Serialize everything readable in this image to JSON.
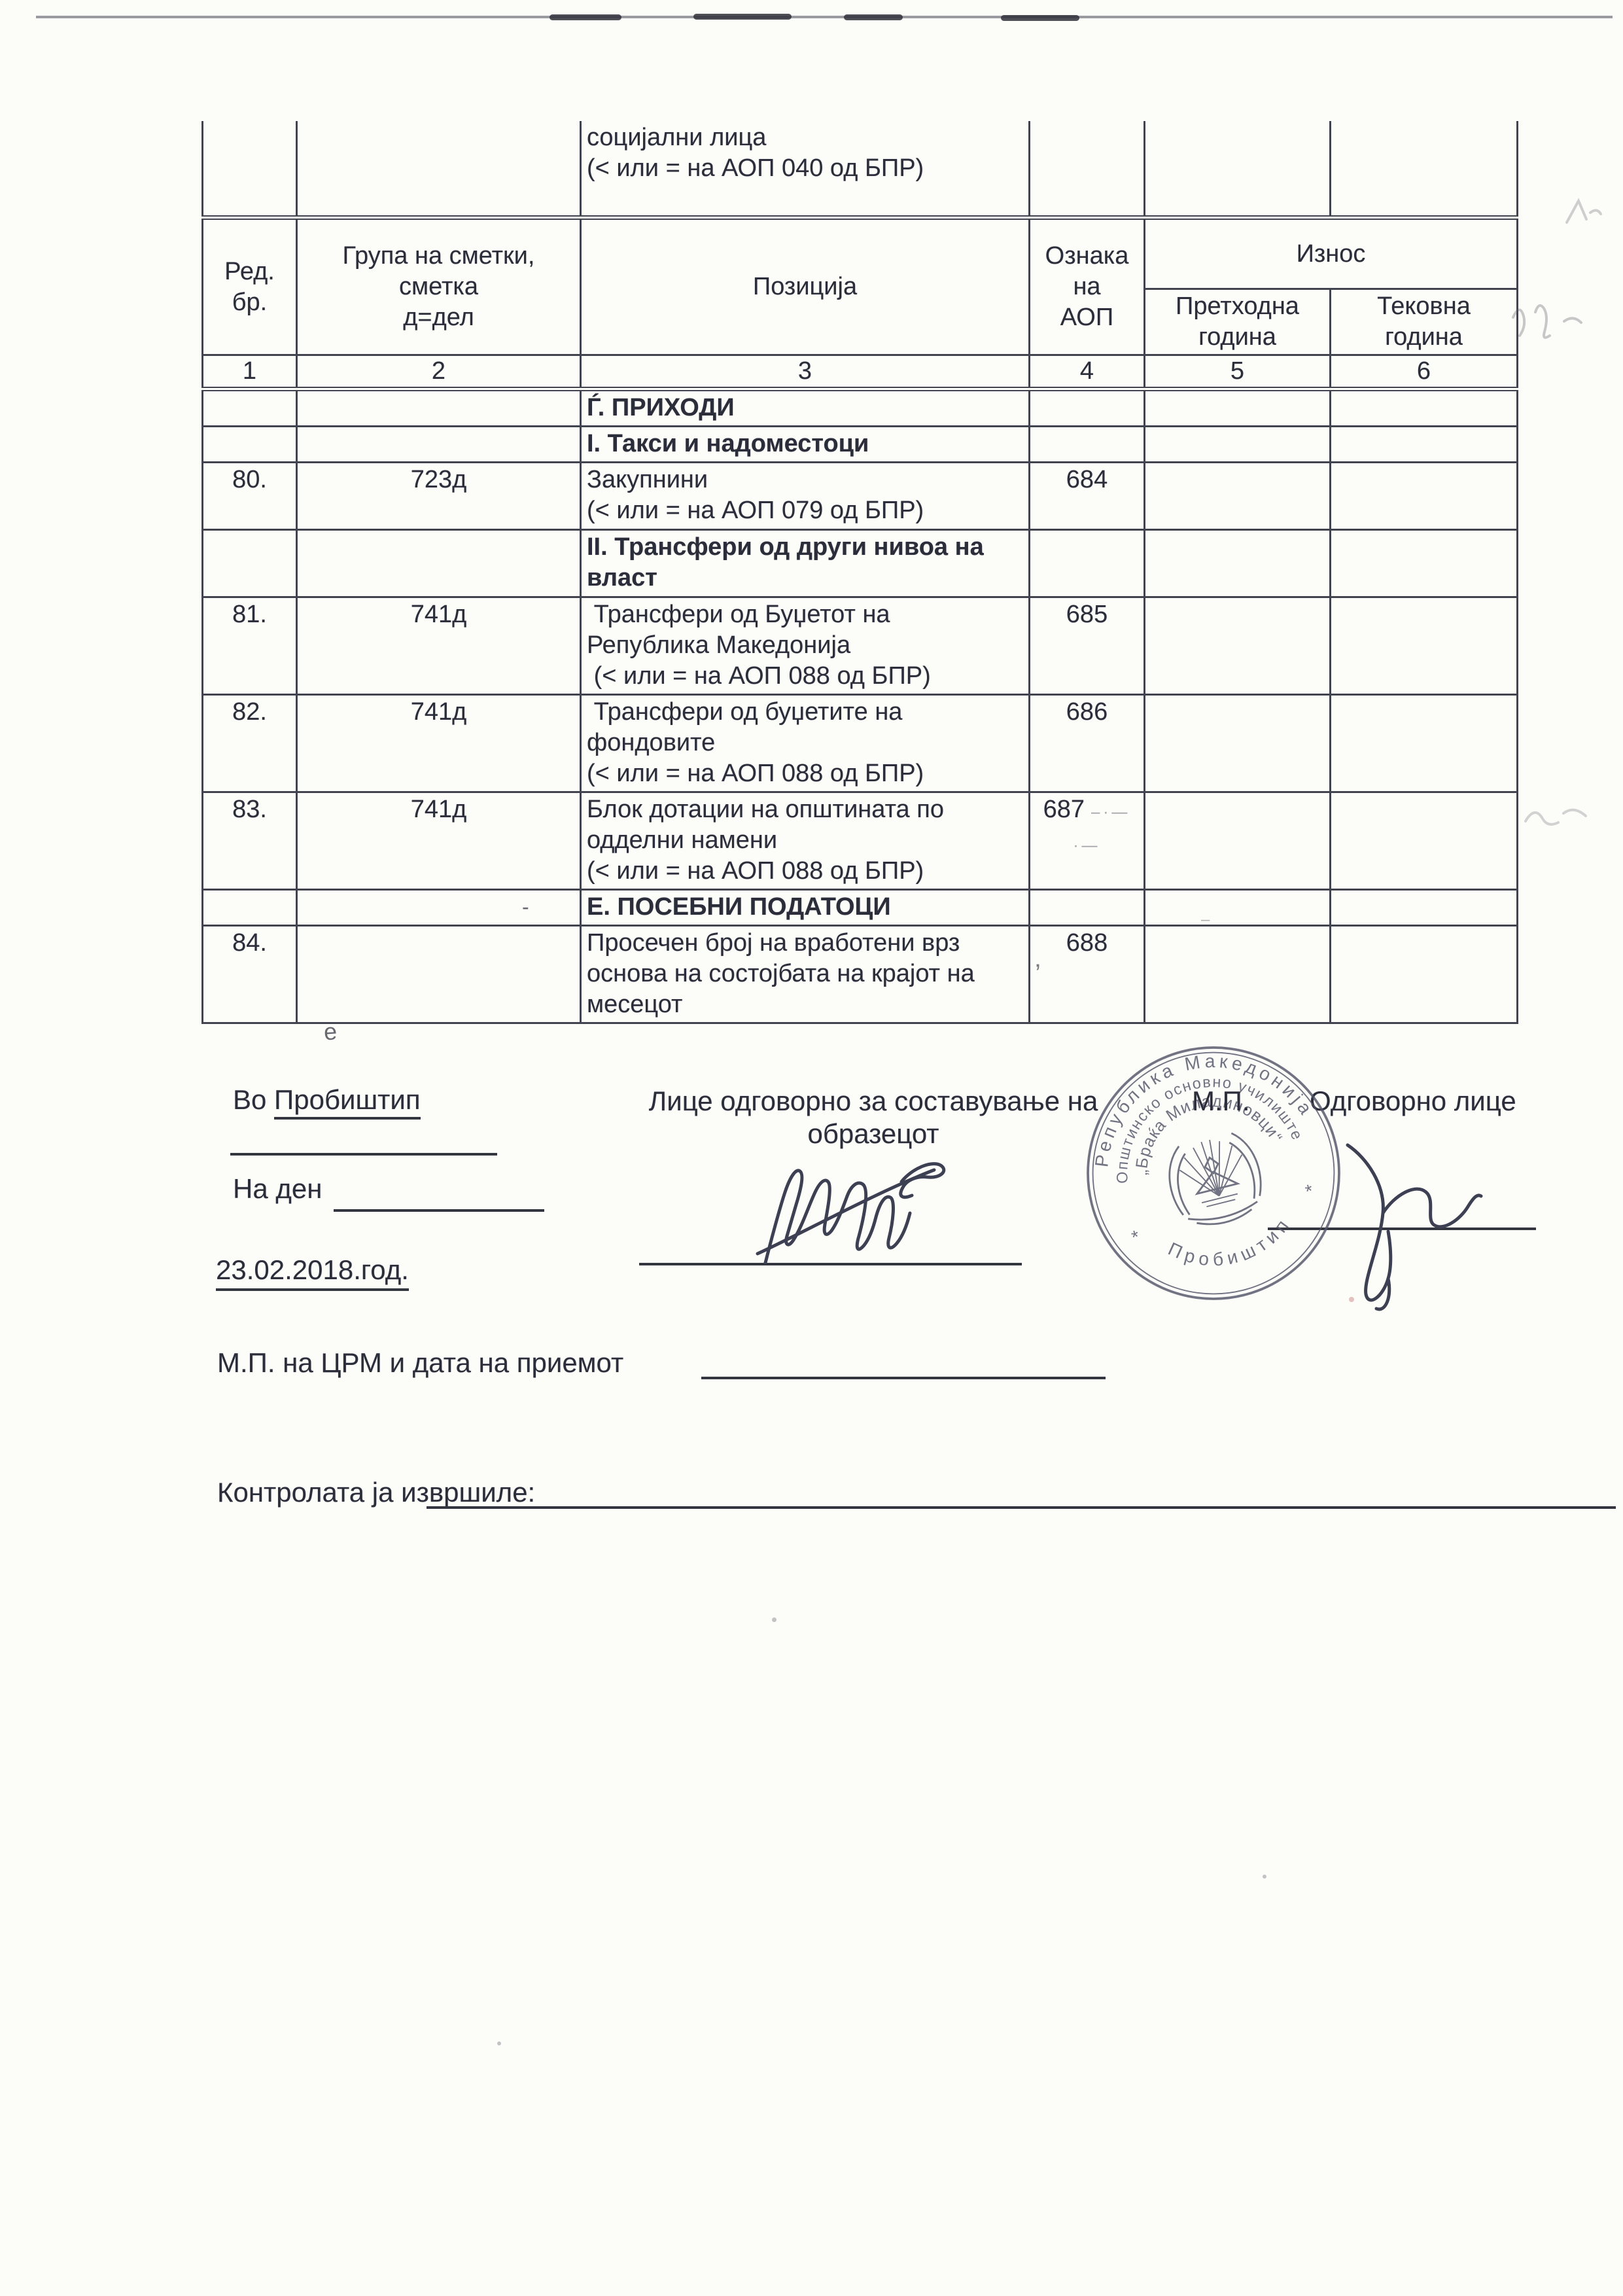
{
  "table": {
    "partial_row": {
      "position_lines": [
        "социјални лица",
        "(< или = на АОП 040 од БПР)"
      ]
    },
    "header": {
      "col1": "Ред.\nбр.",
      "col2": "Група на сметки,\nсметка\nд=дел",
      "col3": "Позиција",
      "col4": "Ознака\nна\nАОП",
      "amount": "Износ",
      "amount_prev": "Претходна\nгодина",
      "amount_curr": "Тековна\nгодина"
    },
    "numbers_row": [
      "1",
      "2",
      "3",
      "4",
      "5",
      "6"
    ],
    "rows": [
      {
        "no": "",
        "group": "",
        "pos": [
          "Ѓ. ПРИХОДИ"
        ],
        "aop": "",
        "prev": "",
        "curr": "",
        "bold": true,
        "lines": 1
      },
      {
        "no": "",
        "group": "",
        "pos": [
          "I. Такси и надоместоци"
        ],
        "aop": "",
        "prev": "",
        "curr": "",
        "bold": true,
        "lines": 1
      },
      {
        "no": "80.",
        "group": "723д",
        "pos": [
          "Закупнини",
          "(< или = на АОП 079 од БПР)"
        ],
        "aop": "684",
        "prev": "",
        "curr": "",
        "lines": 2
      },
      {
        "no": "",
        "group": "",
        "pos": [
          "II. Трансфери од други нивоа на",
          "власт"
        ],
        "aop": "",
        "prev": "",
        "curr": "",
        "bold": true,
        "lines": 2
      },
      {
        "no": "81.",
        "group": "741д",
        "pos": [
          " Трансфери од Буџетот на",
          "Република Македонија",
          " (< или = на АОП 088 од БПР)"
        ],
        "aop": "685",
        "prev": "",
        "curr": "",
        "lines": 3
      },
      {
        "no": "82.",
        "group": "741д",
        "pos": [
          " Трансфери од буџетите на",
          "фондовите",
          "(< или = на АОП 088 од БПР)"
        ],
        "aop": "686",
        "prev": "",
        "curr": "",
        "lines": 3
      },
      {
        "no": "83.",
        "group": "741д",
        "group_bottom": true,
        "pos": [
          "Блок дотации на општината по",
          "одделни намени",
          "(< или = на АОП 088 од БПР)"
        ],
        "aop": "687",
        "aop_artifact": "–·— ·—",
        "prev": "",
        "curr": "",
        "lines": 3
      },
      {
        "no": "",
        "group": "",
        "pos": [
          "Е. ПОСЕБНИ ПОДАТОЦИ"
        ],
        "aop": "",
        "prev": "",
        "curr": "",
        "bold": true,
        "lines": 1
      },
      {
        "no": "84.",
        "group": "",
        "pos": [
          "Просечен број на вработени врз",
          "основа на состојбата на крајот на",
          "месецот"
        ],
        "aop": "688",
        "prev": "",
        "curr": "",
        "lines": 3
      }
    ]
  },
  "footer": {
    "place_label": "Во ",
    "place_value": "Пробиштип",
    "on_day_label": "На ден",
    "date_value": "23.02.2018.год.",
    "responsible_center_l1": "Лице одговорно за составување на",
    "responsible_center_l2": "образецот",
    "mp_label": "М.П.",
    "responsible_right": "Одговорно лице",
    "crm_label": "М.П. на ЦРМ и дата на приемот",
    "control_label": "Контролата ја извршиле:"
  },
  "stamp": {
    "ring_outer": "Република Македонија",
    "ring_middle": "Општинско основно училиште",
    "ring_inner": "„Браќа Миладиновци“",
    "bottom": "Пробиштип",
    "star": "*"
  },
  "artifacts": {
    "stray_letter": "е",
    "apostrophe": "’",
    "row84_dash": "-",
    "row84_dot": "–"
  },
  "colors": {
    "ink": "#2b2e3a",
    "border": "#41444f",
    "line": "#33353f",
    "stamp": "#53556a"
  }
}
